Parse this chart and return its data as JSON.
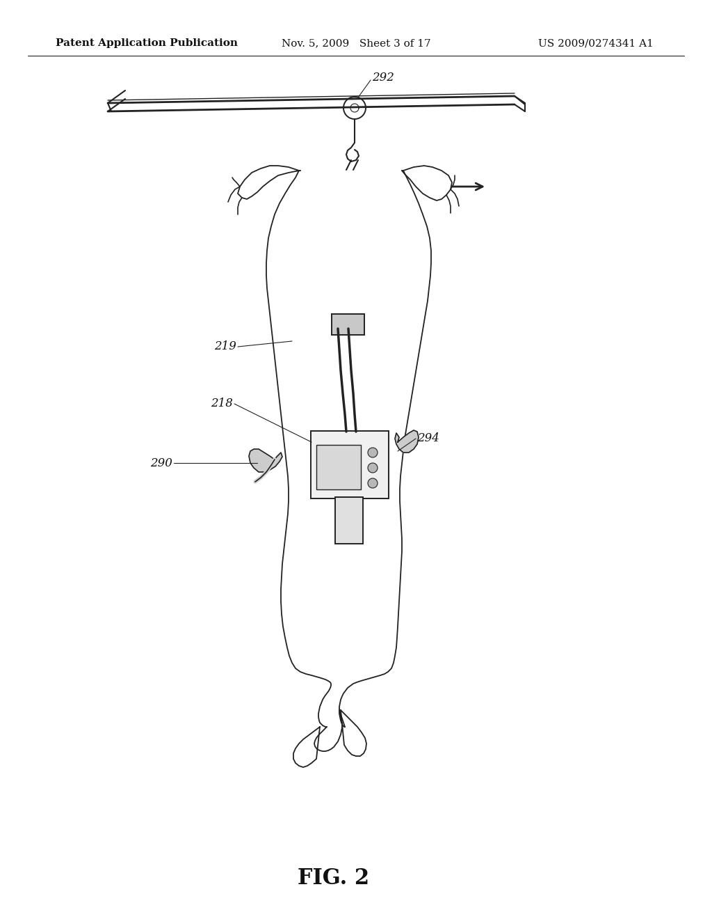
{
  "background_color": "#ffffff",
  "header_left": "Patent Application Publication",
  "header_middle": "Nov. 5, 2009   Sheet 3 of 17",
  "header_right": "US 2009/0274341 A1",
  "header_fontsize": 11,
  "figure_caption": "FIG. 2",
  "caption_fontsize": 22,
  "label_fontsize": 12,
  "image_color": "#222222"
}
